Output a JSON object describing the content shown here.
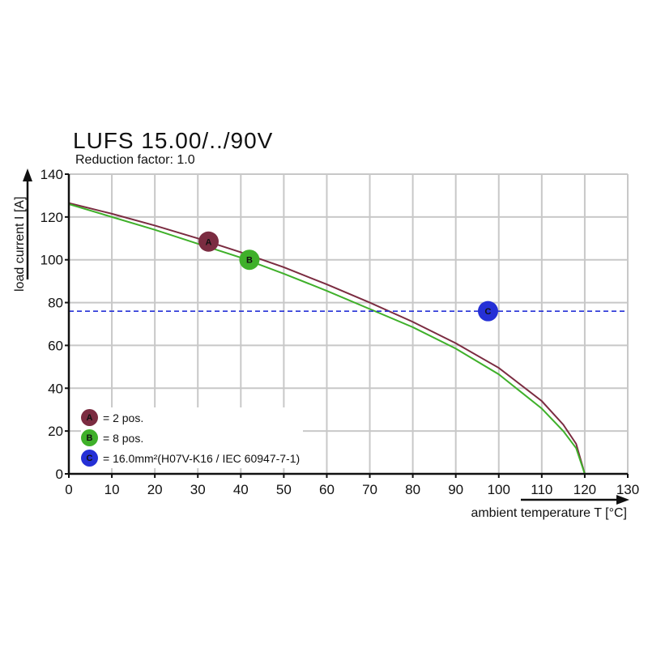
{
  "title": "LUFS 15.00/../90V",
  "subtitle": "Reduction factor: 1.0",
  "colors": {
    "A": "#7b2c41",
    "B": "#3fb02a",
    "C": "#2530d6"
  },
  "legend": [
    {
      "marker": "A",
      "text": "= 2 pos."
    },
    {
      "marker": "B",
      "text": "= 8 pos."
    },
    {
      "marker": "C",
      "text": "= 16.0mm²(H07V-K16 / IEC 60947-7-1)"
    }
  ],
  "chart_data": {
    "type": "line",
    "xlabel": "ambient temperature T [°C]",
    "ylabel": "load current I [A]",
    "xlim": [
      0,
      130
    ],
    "ylim": [
      0,
      140
    ],
    "xticks": [
      0,
      10,
      20,
      30,
      40,
      50,
      60,
      70,
      80,
      90,
      100,
      110,
      120,
      130
    ],
    "yticks": [
      0,
      20,
      40,
      60,
      80,
      100,
      120,
      140
    ],
    "grid": true,
    "legend_position": "bottom-left",
    "series": [
      {
        "name": "A",
        "x": [
          0,
          10,
          20,
          30,
          40,
          50,
          60,
          70,
          80,
          90,
          100,
          110,
          115,
          118,
          120
        ],
        "y": [
          126.5,
          121.5,
          116,
          110,
          103.5,
          96.5,
          88.5,
          80,
          71,
          61,
          49.5,
          34,
          23,
          14,
          0
        ],
        "marker": {
          "label": "A",
          "x": 32.5,
          "y": 108.5
        }
      },
      {
        "name": "B",
        "x": [
          0,
          10,
          20,
          30,
          40,
          50,
          60,
          70,
          80,
          90,
          100,
          110,
          115,
          118,
          120
        ],
        "y": [
          126,
          120,
          114,
          107.5,
          101,
          93.5,
          85.5,
          77,
          68.5,
          58.5,
          46.5,
          30.5,
          20,
          12,
          0
        ],
        "marker": {
          "label": "B",
          "x": 42,
          "y": 100
        }
      },
      {
        "name": "C",
        "style": "dashed",
        "x": [
          0,
          130
        ],
        "y": [
          76,
          76
        ],
        "marker": {
          "label": "C",
          "x": 97.5,
          "y": 76
        }
      }
    ]
  }
}
